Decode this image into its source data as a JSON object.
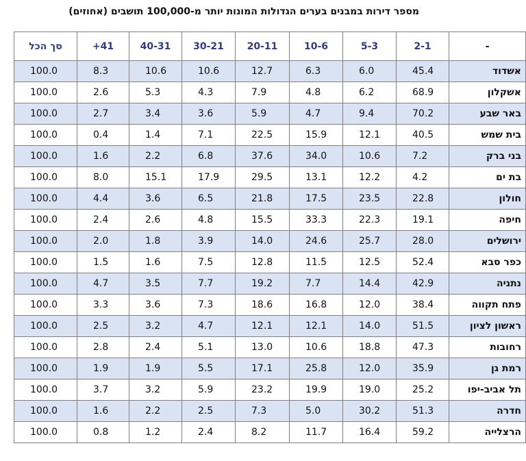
{
  "title": "מספר דירות במבנים בערים הגדולות המונות יותר מ-100,000 תושבים (אחוזים)",
  "columns": [
    "-",
    "2-1",
    "5-3",
    "10-6",
    "20-11",
    "30-21",
    "40-31",
    "41+",
    "סך הכל"
  ],
  "rows": [
    {
      "city": "אשדוד",
      "values": [
        "45.4",
        "6.0",
        "6.3",
        "12.7",
        "10.6",
        "10.6",
        "8.3",
        "100.0"
      ]
    },
    {
      "city": "אשקלון",
      "values": [
        "68.9",
        "6.2",
        "4.8",
        "7.9",
        "4.3",
        "5.3",
        "2.6",
        "100.0"
      ]
    },
    {
      "city": "באר שבע",
      "values": [
        "70.2",
        "9.4",
        "4.7",
        "5.9",
        "3.6",
        "3.4",
        "2.7",
        "100.0"
      ]
    },
    {
      "city": "בית שמש",
      "values": [
        "40.5",
        "12.1",
        "15.9",
        "22.5",
        "7.1",
        "1.4",
        "0.4",
        "100.0"
      ]
    },
    {
      "city": "בני ברק",
      "values": [
        "7.2",
        "10.6",
        "34.0",
        "37.6",
        "6.8",
        "2.2",
        "1.6",
        "100.0"
      ]
    },
    {
      "city": "בת ים",
      "values": [
        "4.2",
        "12.2",
        "13.1",
        "29.5",
        "17.9",
        "15.1",
        "8.0",
        "100.0"
      ]
    },
    {
      "city": "חולון",
      "values": [
        "22.8",
        "23.5",
        "17.5",
        "21.8",
        "6.5",
        "3.6",
        "4.4",
        "100.0"
      ]
    },
    {
      "city": "חיפה",
      "values": [
        "19.1",
        "22.3",
        "33.3",
        "15.5",
        "4.8",
        "2.6",
        "2.4",
        "100.0"
      ]
    },
    {
      "city": "ירושלים",
      "values": [
        "28.0",
        "25.7",
        "24.6",
        "14.0",
        "3.9",
        "1.8",
        "2.0",
        "100.0"
      ]
    },
    {
      "city": "כפר סבא",
      "values": [
        "52.4",
        "12.5",
        "11.5",
        "12.8",
        "7.5",
        "1.6",
        "1.5",
        "100.0"
      ]
    },
    {
      "city": "נתניה",
      "values": [
        "42.9",
        "14.4",
        "7.7",
        "19.2",
        "7.7",
        "3.5",
        "4.7",
        "100.0"
      ]
    },
    {
      "city": "פתח תקווה",
      "values": [
        "38.4",
        "12.0",
        "16.8",
        "18.6",
        "7.3",
        "3.6",
        "3.3",
        "100.0"
      ]
    },
    {
      "city": "ראשון לציון",
      "values": [
        "51.5",
        "14.0",
        "12.1",
        "12.1",
        "4.7",
        "3.2",
        "2.5",
        "100.0"
      ]
    },
    {
      "city": "רחובות",
      "values": [
        "47.3",
        "18.8",
        "10.6",
        "13.0",
        "5.1",
        "2.4",
        "2.8",
        "100.0"
      ]
    },
    {
      "city": "רמת גן",
      "values": [
        "35.9",
        "12.0",
        "25.8",
        "17.1",
        "5.5",
        "1.9",
        "1.9",
        "100.0"
      ]
    },
    {
      "city": "תל אביב-יפו",
      "values": [
        "25.2",
        "19.0",
        "19.9",
        "23.2",
        "5.9",
        "3.2",
        "3.7",
        "100.0"
      ]
    },
    {
      "city": "חדרה",
      "values": [
        "51.3",
        "30.2",
        "5.0",
        "7.3",
        "2.5",
        "2.2",
        "1.6",
        "100.0"
      ]
    },
    {
      "city": "הרצלייה",
      "values": [
        "59.2",
        "16.4",
        "11.7",
        "8.2",
        "2.4",
        "1.2",
        "0.8",
        "100.0"
      ]
    }
  ],
  "colors": {
    "header_text": "#2f3a8f",
    "row_shade": "#dae3f3",
    "border": "#7f7f7f"
  }
}
